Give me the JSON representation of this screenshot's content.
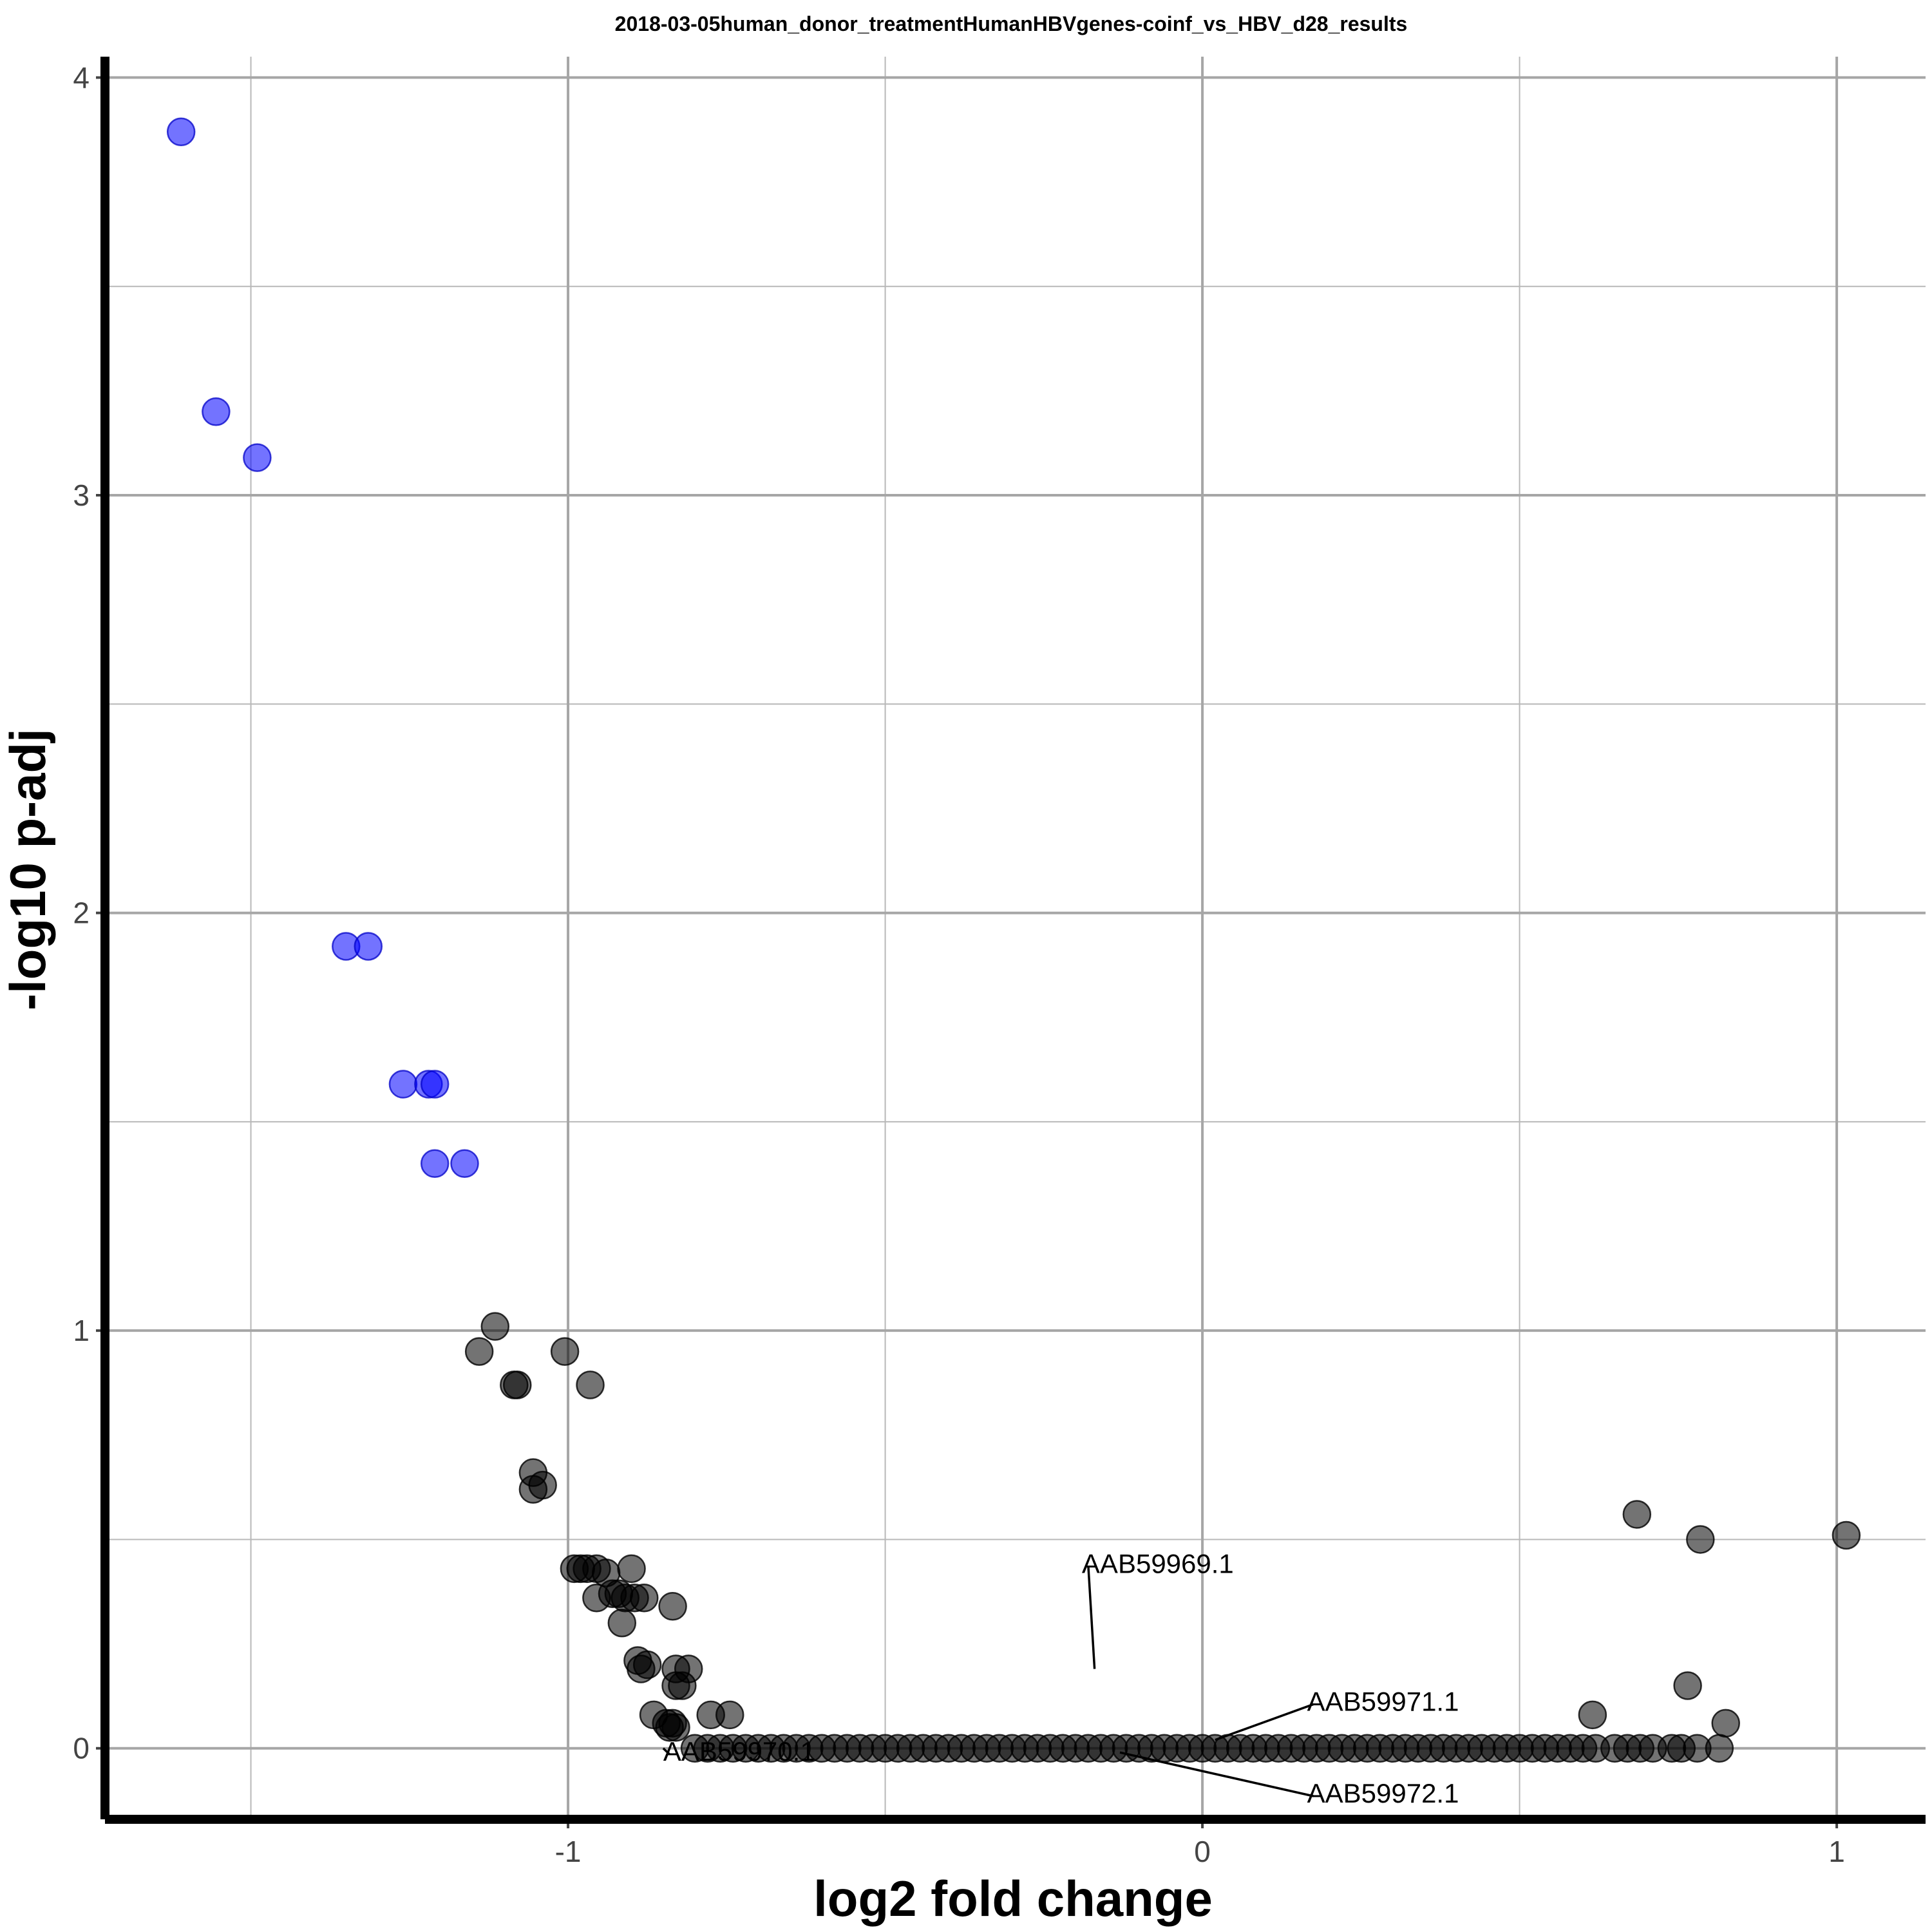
{
  "chart_data": {
    "type": "scatter",
    "title": "2018-03-05human_donor_treatmentHumanHBVgenes-coinf_vs_HBV_d28_results",
    "xlabel": "log2 fold change",
    "ylabel": "-log10 p-adj",
    "xlim": [
      -1.73,
      1.14
    ],
    "ylim": [
      -0.17,
      4.05
    ],
    "x_ticks": [
      -1,
      0,
      1
    ],
    "x_tick_labels": [
      "-1",
      "0",
      "1"
    ],
    "y_ticks": [
      0,
      1,
      2,
      3,
      4
    ],
    "y_tick_labels": [
      "0",
      "1",
      "2",
      "3",
      "4"
    ],
    "grid": true,
    "legend": "none",
    "colors": {
      "significant": "#0000ff",
      "not_significant": "#000000"
    },
    "series": [
      {
        "group": "significant",
        "points": [
          [
            -1.61,
            3.87
          ],
          [
            -1.555,
            3.2
          ],
          [
            -1.49,
            3.09
          ],
          [
            -1.35,
            1.92
          ],
          [
            -1.315,
            1.92
          ],
          [
            -1.26,
            1.59
          ],
          [
            -1.22,
            1.59
          ],
          [
            -1.21,
            1.59
          ],
          [
            -1.21,
            1.4
          ],
          [
            -1.163,
            1.4
          ]
        ]
      },
      {
        "group": "not_significant",
        "points": [
          [
            -1.115,
            1.01
          ],
          [
            -1.14,
            0.95
          ],
          [
            -1.005,
            0.95
          ],
          [
            -1.08,
            0.87
          ],
          [
            -1.085,
            0.87
          ],
          [
            -0.965,
            0.87
          ],
          [
            -1.055,
            0.66
          ],
          [
            -1.055,
            0.62
          ],
          [
            -1.04,
            0.63
          ],
          [
            -0.99,
            0.43
          ],
          [
            -0.98,
            0.43
          ],
          [
            -0.97,
            0.43
          ],
          [
            -0.955,
            0.43
          ],
          [
            -0.94,
            0.42
          ],
          [
            -0.9,
            0.43
          ],
          [
            -0.955,
            0.36
          ],
          [
            -0.93,
            0.37
          ],
          [
            -0.92,
            0.37
          ],
          [
            -0.91,
            0.36
          ],
          [
            -0.895,
            0.36
          ],
          [
            -0.88,
            0.36
          ],
          [
            -0.915,
            0.3
          ],
          [
            -0.835,
            0.34
          ],
          [
            -0.89,
            0.21
          ],
          [
            -0.885,
            0.19
          ],
          [
            -0.875,
            0.2
          ],
          [
            -0.83,
            0.19
          ],
          [
            -0.81,
            0.19
          ],
          [
            -0.83,
            0.15
          ],
          [
            -0.82,
            0.15
          ],
          [
            -0.865,
            0.08
          ],
          [
            -0.845,
            0.06
          ],
          [
            -0.835,
            0.06
          ],
          [
            -0.84,
            0.05
          ],
          [
            -0.83,
            0.05
          ],
          [
            -0.775,
            0.08
          ],
          [
            -0.745,
            0.08
          ],
          [
            -0.8,
            0.0
          ],
          [
            -0.78,
            0.0
          ],
          [
            -0.76,
            0.0
          ],
          [
            -0.74,
            0.0
          ],
          [
            -0.72,
            0.0
          ],
          [
            -0.7,
            0.0
          ],
          [
            -0.68,
            0.0
          ],
          [
            -0.66,
            0.0
          ],
          [
            -0.64,
            0.0
          ],
          [
            -0.62,
            0.0
          ],
          [
            -0.6,
            0.0
          ],
          [
            -0.58,
            0.0
          ],
          [
            -0.56,
            0.0
          ],
          [
            -0.54,
            0.0
          ],
          [
            -0.52,
            0.0
          ],
          [
            -0.5,
            0.0
          ],
          [
            -0.48,
            0.0
          ],
          [
            -0.46,
            0.0
          ],
          [
            -0.44,
            0.0
          ],
          [
            -0.42,
            0.0
          ],
          [
            -0.4,
            0.0
          ],
          [
            -0.38,
            0.0
          ],
          [
            -0.36,
            0.0
          ],
          [
            -0.34,
            0.0
          ],
          [
            -0.32,
            0.0
          ],
          [
            -0.3,
            0.0
          ],
          [
            -0.28,
            0.0
          ],
          [
            -0.26,
            0.0
          ],
          [
            -0.24,
            0.0
          ],
          [
            -0.22,
            0.0
          ],
          [
            -0.2,
            0.0
          ],
          [
            -0.18,
            0.0
          ],
          [
            -0.16,
            0.0
          ],
          [
            -0.14,
            0.0
          ],
          [
            -0.12,
            0.0
          ],
          [
            -0.1,
            0.0
          ],
          [
            -0.08,
            0.0
          ],
          [
            -0.06,
            0.0
          ],
          [
            -0.04,
            0.0
          ],
          [
            -0.02,
            0.0
          ],
          [
            0.0,
            0.0
          ],
          [
            0.02,
            0.0
          ],
          [
            0.04,
            0.0
          ],
          [
            0.06,
            0.0
          ],
          [
            0.08,
            0.0
          ],
          [
            0.1,
            0.0
          ],
          [
            0.12,
            0.0
          ],
          [
            0.14,
            0.0
          ],
          [
            0.16,
            0.0
          ],
          [
            0.18,
            0.0
          ],
          [
            0.2,
            0.0
          ],
          [
            0.22,
            0.0
          ],
          [
            0.24,
            0.0
          ],
          [
            0.26,
            0.0
          ],
          [
            0.28,
            0.0
          ],
          [
            0.3,
            0.0
          ],
          [
            0.32,
            0.0
          ],
          [
            0.34,
            0.0
          ],
          [
            0.36,
            0.0
          ],
          [
            0.38,
            0.0
          ],
          [
            0.4,
            0.0
          ],
          [
            0.42,
            0.0
          ],
          [
            0.44,
            0.0
          ],
          [
            0.46,
            0.0
          ],
          [
            0.48,
            0.0
          ],
          [
            0.5,
            0.0
          ],
          [
            0.52,
            0.0
          ],
          [
            0.54,
            0.0
          ],
          [
            0.56,
            0.0
          ],
          [
            0.58,
            0.0
          ],
          [
            0.6,
            0.0
          ],
          [
            0.62,
            0.0
          ],
          [
            0.65,
            0.0
          ],
          [
            0.67,
            0.0
          ],
          [
            0.69,
            0.0
          ],
          [
            0.71,
            0.0
          ],
          [
            0.74,
            0.0
          ],
          [
            0.755,
            0.0
          ],
          [
            0.78,
            0.0
          ],
          [
            0.815,
            0.0
          ],
          [
            0.615,
            0.08
          ],
          [
            0.685,
            0.56
          ],
          [
            0.785,
            0.5
          ],
          [
            1.015,
            0.51
          ],
          [
            0.765,
            0.15
          ],
          [
            0.825,
            0.06
          ]
        ]
      }
    ],
    "annotations": [
      {
        "label": "AAB59969.1",
        "point": [
          -0.17,
          0.19
        ],
        "text_pos": [
          -0.19,
          0.42
        ],
        "anchor": "start"
      },
      {
        "label": "AAB59971.1",
        "point": [
          0.02,
          0.02
        ],
        "text_pos": [
          0.165,
          0.09
        ],
        "anchor": "start"
      },
      {
        "label": "AAB59972.1",
        "point": [
          -0.13,
          -0.01
        ],
        "text_pos": [
          0.165,
          -0.13
        ],
        "anchor": "start"
      },
      {
        "label": "AAB59970.1",
        "point": [
          -0.85,
          0.0
        ],
        "text_pos": [
          -0.85,
          -0.03
        ],
        "anchor": "start"
      }
    ]
  }
}
